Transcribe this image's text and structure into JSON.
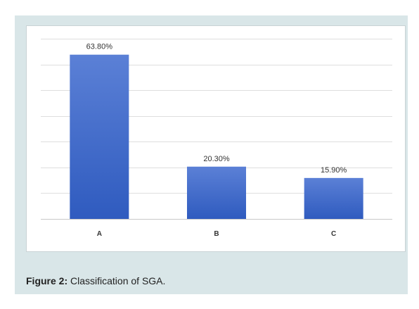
{
  "chart_data": {
    "type": "bar",
    "categories": [
      "A",
      "B",
      "C"
    ],
    "values": [
      63.8,
      20.3,
      15.9
    ],
    "data_labels": [
      "63.80%",
      "20.30%",
      "15.90%"
    ],
    "ylim": [
      0,
      70
    ],
    "grid": true,
    "legend": "none",
    "bar_color_top": "#5b80d6",
    "bar_color_bottom": "#2f5bbf"
  },
  "caption": {
    "label": "Figure 2:",
    "text": " Classification of SGA."
  }
}
